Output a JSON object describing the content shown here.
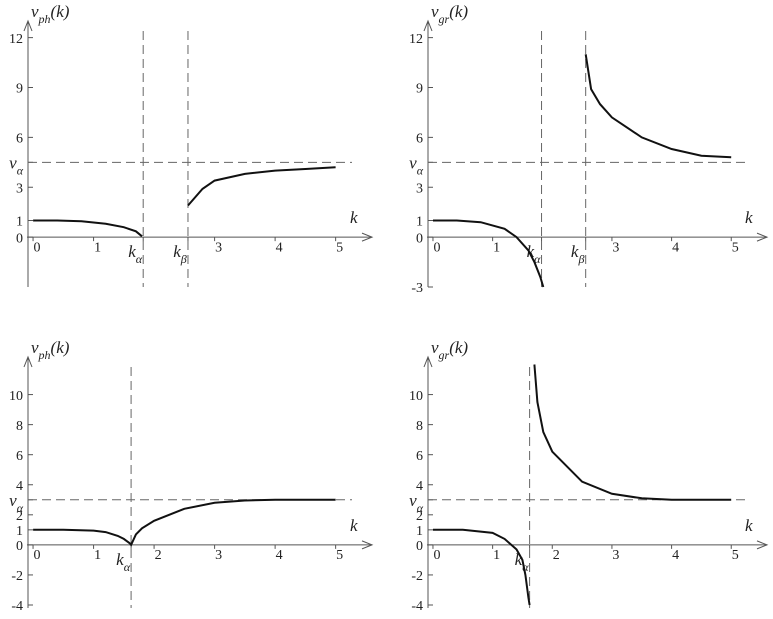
{
  "chart_data": [
    {
      "type": "line",
      "ylabel": {
        "main": "v",
        "sub": "ph",
        "tail": "(k)"
      },
      "xlabel": "k",
      "xlim": [
        -0.1,
        5.7
      ],
      "ylim": [
        -3,
        13
      ],
      "xticks": [
        0,
        1,
        {
          "value": 1.82,
          "label": {
            "main": "k",
            "sub": "α"
          }
        },
        {
          "value": 2.56,
          "label": {
            "main": "k",
            "sub": "β"
          }
        },
        3,
        4,
        5
      ],
      "yticks": [
        0,
        1,
        3,
        {
          "value": 4.5,
          "label": {
            "main": "v",
            "sub": "α"
          }
        },
        6,
        9,
        12
      ],
      "series": [
        {
          "color": "#111111",
          "x": [
            0,
            0.4,
            0.8,
            1.2,
            1.5,
            1.7,
            1.8,
            2.2,
            2.56,
            2.8,
            3,
            3.5,
            4,
            4.5,
            5
          ],
          "values": [
            1,
            1,
            0.95,
            0.8,
            0.6,
            0.35,
            0.05,
            null,
            1.9,
            2.9,
            3.4,
            3.8,
            4.0,
            4.1,
            4.2
          ]
        }
      ]
    },
    {
      "type": "line",
      "ylabel": {
        "main": "v",
        "sub": "gr",
        "tail": "(k)"
      },
      "xlabel": "k",
      "xlim": [
        -0.1,
        5.7
      ],
      "ylim": [
        -3,
        13
      ],
      "xticks": [
        0,
        1,
        {
          "value": 1.82,
          "label": {
            "main": "k",
            "sub": "α"
          }
        },
        {
          "value": 2.56,
          "label": {
            "main": "k",
            "sub": "β"
          }
        },
        3,
        4,
        5
      ],
      "yticks": [
        -3,
        0,
        1,
        3,
        {
          "value": 4.5,
          "label": {
            "main": "v",
            "sub": "α"
          }
        },
        6,
        9,
        12
      ],
      "series": [
        {
          "color": "#111111",
          "x": [
            0,
            0.4,
            0.8,
            1.2,
            1.4,
            1.6,
            1.7,
            1.8,
            1.85,
            2.2,
            2.56,
            2.65,
            2.8,
            3,
            3.5,
            4,
            4.5,
            5
          ],
          "values": [
            1,
            1,
            0.9,
            0.5,
            0,
            -0.8,
            -1.5,
            -2.4,
            -3,
            null,
            11,
            8.9,
            8,
            7.2,
            6,
            5.3,
            4.9,
            4.8
          ]
        }
      ]
    },
    {
      "type": "line",
      "ylabel": {
        "main": "v",
        "sub": "ph",
        "tail": "(k)"
      },
      "xlabel": "k",
      "xlim": [
        -0.1,
        5.7
      ],
      "ylim": [
        -4.2,
        12.5
      ],
      "xticks": [
        0,
        1,
        {
          "value": 1.62,
          "label": {
            "main": "k",
            "sub": "α"
          }
        },
        2,
        3,
        4,
        5
      ],
      "yticks": [
        -4,
        -2,
        0,
        1,
        2,
        {
          "value": 3,
          "label": {
            "main": "v",
            "sub": "α"
          }
        },
        4,
        6,
        8,
        10
      ],
      "series": [
        {
          "color": "#111111",
          "x": [
            0,
            0.5,
            1,
            1.2,
            1.4,
            1.5,
            1.6,
            1.62,
            1.7,
            1.8,
            2,
            2.5,
            3,
            3.5,
            4,
            5
          ],
          "values": [
            1,
            1,
            0.95,
            0.85,
            0.6,
            0.4,
            0.1,
            0,
            0.7,
            1.1,
            1.6,
            2.4,
            2.8,
            2.95,
            3,
            3
          ]
        }
      ]
    },
    {
      "type": "line",
      "ylabel": {
        "main": "v",
        "sub": "gr",
        "tail": "(k)"
      },
      "xlabel": "k",
      "xlim": [
        -0.1,
        5.7
      ],
      "ylim": [
        -4.2,
        12.5
      ],
      "xticks": [
        0,
        1,
        {
          "value": 1.62,
          "label": {
            "main": "k",
            "sub": "α"
          }
        },
        2,
        3,
        4,
        5
      ],
      "yticks": [
        -4,
        -2,
        0,
        1,
        2,
        {
          "value": 3,
          "label": {
            "main": "v",
            "sub": "α"
          }
        },
        4,
        6,
        8,
        10
      ],
      "series": [
        {
          "color": "#111111",
          "x": [
            0,
            0.5,
            1,
            1.2,
            1.4,
            1.5,
            1.55,
            1.6,
            1.62,
            1.66,
            1.7,
            1.75,
            1.85,
            2,
            2.5,
            3,
            3.5,
            4,
            5
          ],
          "values": [
            1,
            1,
            0.8,
            0.4,
            -0.3,
            -1,
            -2,
            -3.5,
            -4,
            null,
            12,
            9.5,
            7.5,
            6.2,
            4.2,
            3.4,
            3.1,
            3.0,
            3.0
          ]
        }
      ]
    }
  ]
}
